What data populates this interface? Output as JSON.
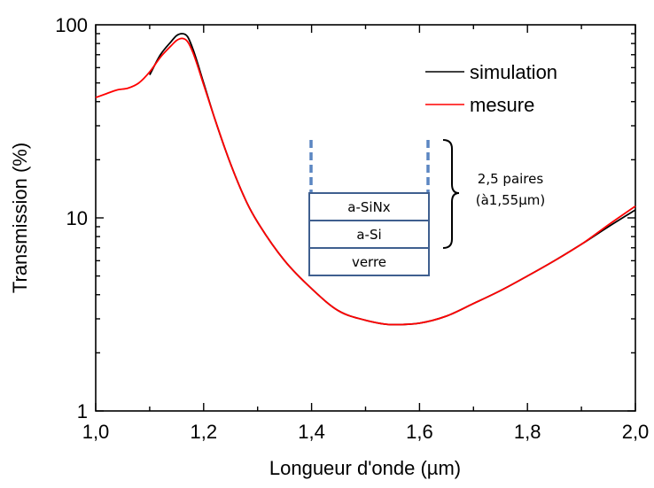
{
  "chart_data": {
    "type": "line",
    "title": "",
    "xlabel": "Longueur d'onde (µm)",
    "ylabel": "Transmission (%)",
    "xlim": [
      1.0,
      2.0
    ],
    "ylim": [
      1,
      100
    ],
    "yscale": "log",
    "grid": false,
    "legend_position": "top-right",
    "x_ticks": [
      1.0,
      1.2,
      1.4,
      1.6,
      1.8,
      2.0
    ],
    "x_tick_labels": [
      "1,0",
      "1,2",
      "1,4",
      "1,6",
      "1,8",
      "2,0"
    ],
    "y_ticks": [
      1,
      10,
      100
    ],
    "y_tick_labels": [
      "1",
      "10",
      "100"
    ],
    "series": [
      {
        "name": "simulation",
        "color": "#000000",
        "x": [
          1.1,
          1.12,
          1.14,
          1.15,
          1.16,
          1.17,
          1.18,
          1.2,
          1.22,
          1.25,
          1.28,
          1.3,
          1.35,
          1.4,
          1.45,
          1.5,
          1.55,
          1.6,
          1.65,
          1.7,
          1.75,
          1.8,
          1.85,
          1.9,
          1.95,
          2.0
        ],
        "y": [
          55,
          70,
          82,
          88,
          90,
          87,
          75,
          50,
          33,
          19,
          12,
          9.5,
          6,
          4.3,
          3.3,
          2.95,
          2.8,
          2.85,
          3.1,
          3.6,
          4.2,
          5.0,
          6.0,
          7.3,
          9.0,
          11.0
        ]
      },
      {
        "name": "mesure",
        "color": "#ff0000",
        "x": [
          1.0,
          1.02,
          1.04,
          1.06,
          1.08,
          1.1,
          1.12,
          1.14,
          1.15,
          1.16,
          1.17,
          1.18,
          1.2,
          1.22,
          1.25,
          1.28,
          1.3,
          1.35,
          1.4,
          1.45,
          1.5,
          1.55,
          1.6,
          1.65,
          1.7,
          1.75,
          1.8,
          1.85,
          1.9,
          1.95,
          2.0
        ],
        "y": [
          42,
          44,
          46,
          47,
          50,
          57,
          68,
          78,
          83,
          85,
          82,
          72,
          49,
          33,
          19,
          12,
          9.5,
          6,
          4.3,
          3.3,
          2.95,
          2.8,
          2.85,
          3.1,
          3.6,
          4.2,
          5.0,
          6.0,
          7.3,
          9.2,
          11.5
        ]
      }
    ],
    "inset": {
      "layers": [
        "a-SiNx",
        "a-Si",
        "verre"
      ],
      "note_line1": "2,5 paires",
      "note_line2": "(à1,55µm)",
      "outline_color": "#3f5f8f",
      "dash_color": "#5b86c2"
    }
  }
}
